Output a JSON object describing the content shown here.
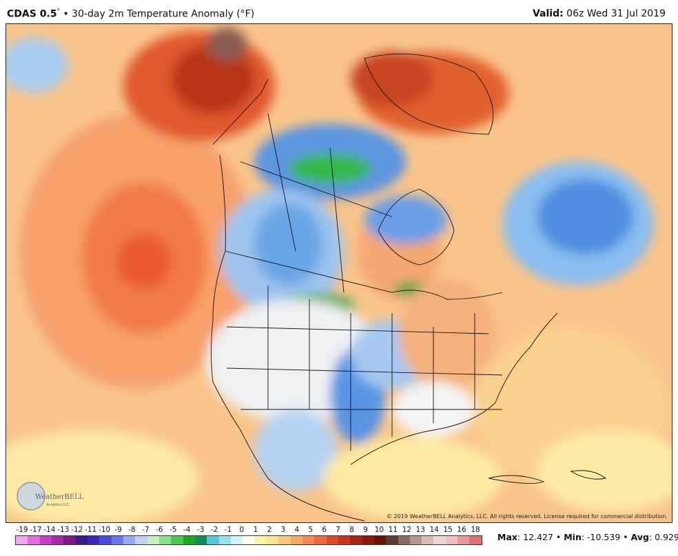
{
  "header": {
    "product": "CDAS 0.5",
    "degree_mark": "°",
    "separator": "•",
    "title": "30-day 2m Temperature Anomaly (°F)",
    "valid_label": "Valid:",
    "valid_value": "06z Wed 31 Jul 2019"
  },
  "map": {
    "copyright": "© 2019 WeatherBELL Analytics, LLC. All rights reserved. License required for commercial distribution.",
    "logo_text": "WeatherBELL",
    "logo_subtext": "Analytics LLC",
    "colors": {
      "ocean_warm": "#f9b97c",
      "warm_core": "#f06a3a",
      "hot": "#c43a1a",
      "very_hot": "#8a2210",
      "neutral": "#f0f0f0",
      "cool": "#8cc0ee",
      "cold": "#3a7fd6",
      "green": "#2ea82e",
      "yellow": "#fdf3a8"
    }
  },
  "legend": {
    "labels": [
      "-19",
      "-17",
      "-14",
      "-13",
      "-12",
      "-11",
      "-10",
      "-9",
      "-8",
      "-7",
      "-6",
      "-5",
      "-4",
      "-3",
      "-2",
      "-1",
      "0",
      "1",
      "2",
      "3",
      "4",
      "5",
      "6",
      "7",
      "8",
      "9",
      "10",
      "11",
      "12",
      "13",
      "14",
      "15",
      "16",
      "18"
    ],
    "colors": [
      "#f6a6f0",
      "#e46ee0",
      "#cc3ccc",
      "#a82aa8",
      "#7a1a80",
      "#3a1a8a",
      "#3a2ab8",
      "#4a4ad8",
      "#6a78e8",
      "#9aa8f0",
      "#c4d0f8",
      "#c8f0c0",
      "#8ae08a",
      "#4cc84c",
      "#1ea81e",
      "#128a5a",
      "#58c8d8",
      "#9ae0ee",
      "#d2f2fa",
      "#fffff0",
      "#fdf3a8",
      "#fde48c",
      "#fbc878",
      "#f8aa66",
      "#f48a52",
      "#ee6a3e",
      "#e04a2a",
      "#c8341c",
      "#a82412",
      "#8a1a0a",
      "#6a1206",
      "#5a3a30",
      "#8a6a60",
      "#b8968c",
      "#d8bcb4",
      "#ecd8d2",
      "#f2c0c0",
      "#ea9a9a",
      "#e07070"
    ],
    "stats": {
      "max_label": "Max",
      "max_value": "12.427",
      "min_label": "Min",
      "min_value": "-10.539",
      "avg_label": "Avg",
      "avg_value": "0.929",
      "sep": "•"
    }
  }
}
